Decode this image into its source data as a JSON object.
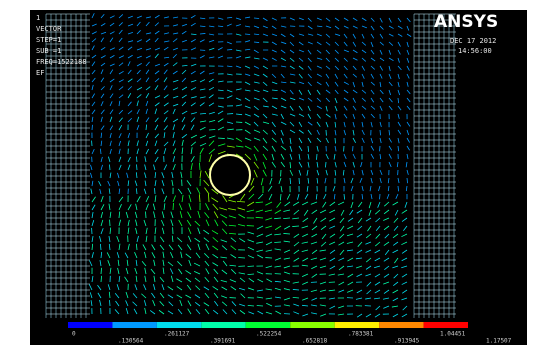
{
  "header": {
    "id": "1",
    "lines": [
      "VECTOR",
      "STEP=1",
      "SUB =1",
      "FREQ=1522188",
      "EF"
    ]
  },
  "logo": "ANSYS",
  "date": "DEC 17 2012",
  "time": "14:56:00",
  "legend": {
    "labels": [
      "0",
      ".130564",
      ".261127",
      ".391691",
      ".522254",
      ".652818",
      ".783381",
      ".913945",
      "1.04451",
      "1.17507"
    ]
  }
}
